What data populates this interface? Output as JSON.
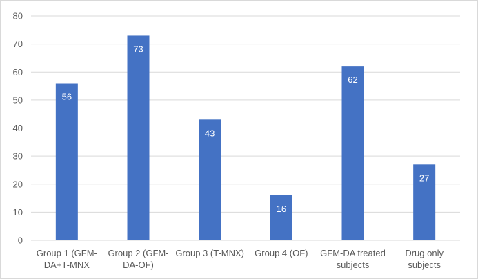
{
  "chart_data": {
    "type": "bar",
    "title": "",
    "xlabel": "",
    "ylabel": "",
    "categories": [
      [
        "Group 1 (GFM-",
        "DA+T-MNX"
      ],
      [
        "Group 2 (GFM-",
        "DA-OF)"
      ],
      [
        "Group 3 (T-MNX)"
      ],
      [
        "Group 4 (OF)"
      ],
      [
        "GFM-DA treated",
        "subjects"
      ],
      [
        "Drug only",
        "subjects"
      ]
    ],
    "values": [
      56,
      73,
      43,
      16,
      62,
      27
    ],
    "data_labels": [
      "56",
      "73",
      "43",
      "16",
      "62",
      "27"
    ],
    "ylim": [
      0,
      80
    ],
    "yticks": [
      0,
      10,
      20,
      30,
      40,
      50,
      60,
      70,
      80
    ],
    "grid": true,
    "legend": "none",
    "bar_color": "#4472c4",
    "grid_color": "#d9d9d9",
    "text_color": "#595959",
    "label_color": "#ffffff"
  }
}
